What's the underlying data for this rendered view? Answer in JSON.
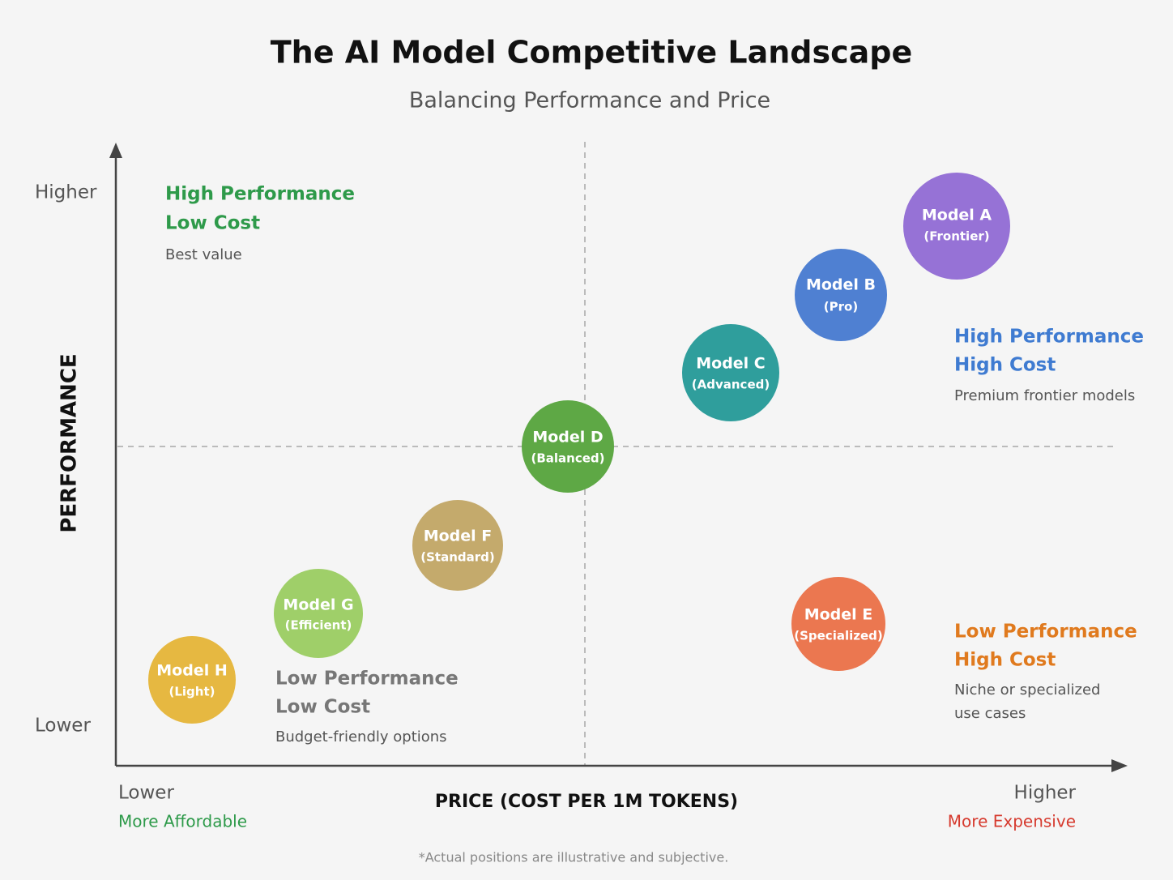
{
  "header": {
    "title": "The AI Model Competitive Landscape",
    "subtitle": "Balancing Performance and Price"
  },
  "y_axis": {
    "title": "PERFORMANCE",
    "high": "Higher",
    "low": "Lower"
  },
  "x_axis": {
    "title": "PRICE (COST PER 1M TOKENS)",
    "low": "Lower",
    "low_note": "More Affordable",
    "high": "Higher",
    "high_note": "More Expensive"
  },
  "quadrants": [
    {
      "title": [
        "High Performance",
        "Low Cost"
      ],
      "note": [
        "Best value"
      ]
    },
    {
      "title": [
        "High Performance",
        "High Cost"
      ],
      "note": [
        "Premium frontier models"
      ]
    },
    {
      "title": [
        "Low Performance",
        "Low Cost"
      ],
      "note": [
        "Budget-friendly options"
      ]
    },
    {
      "title": [
        "Low Performance",
        "High Cost"
      ],
      "note": [
        "Niche or specialized",
        "use cases"
      ]
    }
  ],
  "nodes": [
    {
      "label": "Model A",
      "sublabel": "(Frontier)"
    },
    {
      "label": "Model B",
      "sublabel": "(Pro)"
    },
    {
      "label": "Model C",
      "sublabel": "(Advanced)"
    },
    {
      "label": "Model D",
      "sublabel": "(Balanced)"
    },
    {
      "label": "Model E",
      "sublabel": "(Specialized)"
    },
    {
      "label": "Model F",
      "sublabel": "(Standard)"
    },
    {
      "label": "Model G",
      "sublabel": "(Efficient)"
    },
    {
      "label": "Model H",
      "sublabel": "(Light)"
    }
  ],
  "footnote": "*Actual positions are illustrative and subjective."
}
